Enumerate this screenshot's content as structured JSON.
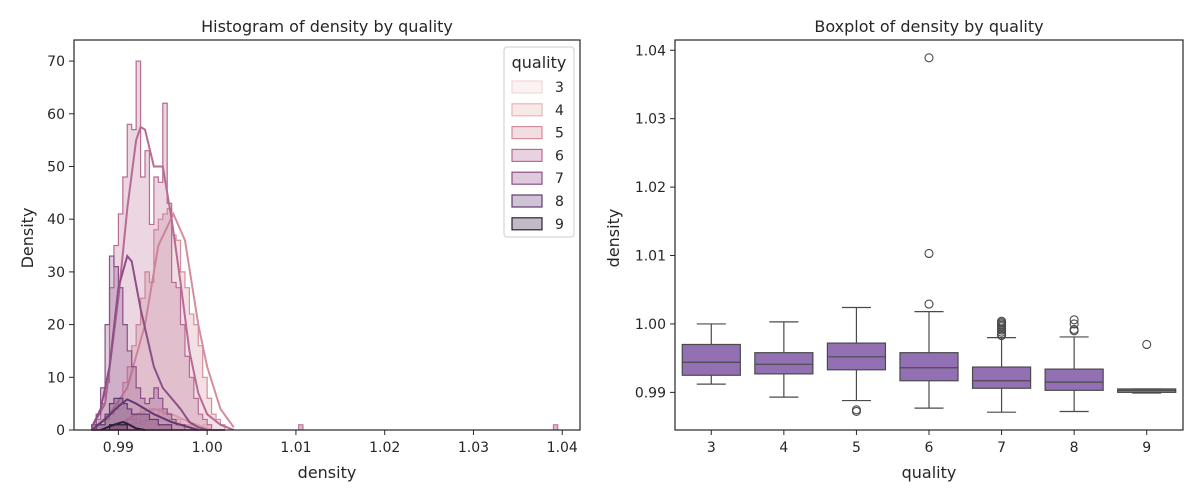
{
  "colors": {
    "q3": "#f3d7d3",
    "q4": "#e8b6b6",
    "q5": "#d48e9d",
    "q6": "#b76b95",
    "q7": "#8d4f88",
    "q8": "#603a70",
    "q9": "#2e1e3b",
    "box_fill": "#9370b3",
    "box_edge": "#4a4a4a"
  },
  "chart_data": [
    {
      "type": "histogram",
      "title": "Histogram of density by quality",
      "xlabel": "density",
      "ylabel": "Density",
      "xlim": [
        0.985,
        1.042
      ],
      "ylim": [
        0,
        74
      ],
      "xticks": [
        0.99,
        1.0,
        1.01,
        1.02,
        1.03,
        1.04
      ],
      "xtick_labels": [
        "0.99",
        "1.00",
        "1.01",
        "1.02",
        "1.03",
        "1.04"
      ],
      "yticks": [
        0,
        10,
        20,
        30,
        40,
        50,
        60,
        70
      ],
      "ytick_labels": [
        "0",
        "10",
        "20",
        "30",
        "40",
        "50",
        "60",
        "70"
      ],
      "legend": {
        "title": "quality",
        "position": "top-right",
        "entries": [
          "3",
          "4",
          "5",
          "6",
          "7",
          "8",
          "9"
        ]
      },
      "element": "step",
      "kde": true,
      "bin_start": 0.987,
      "bin_width": 0.0005,
      "series": [
        {
          "name": "3",
          "counts": [
            0,
            0,
            0,
            0,
            0,
            0,
            0,
            0,
            1,
            1,
            2,
            1,
            2,
            2,
            2,
            1,
            1,
            2,
            1,
            1,
            1,
            1,
            1,
            1,
            0,
            1,
            0,
            0,
            0,
            0
          ],
          "kde": [
            [
              0.9895,
              0
            ],
            [
              0.991,
              1
            ],
            [
              0.994,
              2
            ],
            [
              0.996,
              1.5
            ],
            [
              0.999,
              0.5
            ],
            [
              1.0005,
              0
            ]
          ]
        },
        {
          "name": "4",
          "counts": [
            0,
            0,
            0,
            0,
            0,
            1,
            1,
            1,
            2,
            2,
            3,
            4,
            3,
            4,
            3,
            4,
            3,
            3,
            2,
            2,
            1,
            1,
            1,
            1,
            0,
            0,
            0,
            0,
            0,
            0
          ],
          "kde": [
            [
              0.988,
              0
            ],
            [
              0.99,
              1
            ],
            [
              0.992,
              3
            ],
            [
              0.994,
              4
            ],
            [
              0.996,
              3
            ],
            [
              0.998,
              1.5
            ],
            [
              1.0005,
              0
            ]
          ]
        },
        {
          "name": "5",
          "counts": [
            0,
            1,
            1,
            2,
            3,
            4,
            6,
            9,
            12,
            16,
            20,
            25,
            30,
            28,
            38,
            40,
            41,
            42,
            37,
            36,
            30,
            27,
            22,
            20,
            16,
            10,
            6,
            3,
            2,
            1
          ],
          "kde": [
            [
              0.987,
              0
            ],
            [
              0.989,
              3
            ],
            [
              0.991,
              8
            ],
            [
              0.993,
              20
            ],
            [
              0.9945,
              35
            ],
            [
              0.9962,
              41
            ],
            [
              0.9975,
              36
            ],
            [
              0.999,
              20
            ],
            [
              1.0,
              12
            ],
            [
              1.0015,
              4
            ],
            [
              1.003,
              0.5
            ]
          ]
        },
        {
          "name": "6",
          "counts": [
            1,
            2,
            5,
            9,
            27,
            35,
            41,
            48,
            58,
            57,
            70,
            48,
            53,
            39,
            48,
            47,
            62,
            43,
            28,
            27,
            20,
            14,
            10,
            6,
            3,
            2,
            1,
            0,
            0,
            0
          ],
          "kde": [
            [
              0.987,
              0.5
            ],
            [
              0.9885,
              5
            ],
            [
              0.99,
              25
            ],
            [
              0.991,
              42
            ],
            [
              0.992,
              55
            ],
            [
              0.9925,
              57.5
            ],
            [
              0.993,
              57
            ],
            [
              0.994,
              50
            ],
            [
              0.995,
              50
            ],
            [
              0.996,
              40
            ],
            [
              0.997,
              28
            ],
            [
              0.998,
              15
            ],
            [
              0.999,
              7
            ],
            [
              1.0,
              3
            ],
            [
              1.0015,
              1
            ],
            [
              1.003,
              0
            ]
          ]
        },
        {
          "name": "7",
          "counts": [
            1,
            3,
            8,
            20,
            33,
            31,
            27,
            20,
            15,
            12,
            8,
            6,
            5,
            6,
            8,
            6,
            4,
            3,
            2,
            1,
            1,
            0,
            0,
            0,
            0,
            0,
            0,
            0,
            0,
            0
          ],
          "kde": [
            [
              0.987,
              0.5
            ],
            [
              0.988,
              4
            ],
            [
              0.989,
              12
            ],
            [
              0.99,
              27
            ],
            [
              0.991,
              33
            ],
            [
              0.9915,
              32
            ],
            [
              0.9925,
              23
            ],
            [
              0.994,
              12
            ],
            [
              0.995,
              8
            ],
            [
              0.996,
              6
            ],
            [
              0.997,
              4
            ],
            [
              0.998,
              1.5
            ],
            [
              0.999,
              0.5
            ],
            [
              1.0,
              0
            ]
          ]
        },
        {
          "name": "8",
          "counts": [
            0,
            1,
            1,
            3,
            5,
            6,
            6,
            5,
            4,
            3,
            3,
            3,
            3,
            2,
            2,
            1,
            1,
            1,
            0,
            0,
            0,
            0,
            0,
            0,
            0,
            0,
            0,
            0,
            0,
            0
          ],
          "kde": [
            [
              0.987,
              0
            ],
            [
              0.9885,
              2
            ],
            [
              0.99,
              4.5
            ],
            [
              0.991,
              5.8
            ],
            [
              0.992,
              5
            ],
            [
              0.993,
              4
            ],
            [
              0.994,
              3
            ],
            [
              0.996,
              1.5
            ],
            [
              0.998,
              0.5
            ],
            [
              0.999,
              0
            ]
          ]
        },
        {
          "name": "9",
          "counts": [
            0,
            0,
            0,
            0,
            1,
            1,
            1,
            1,
            0,
            0,
            0,
            0,
            0,
            0,
            0,
            0,
            0,
            0,
            0,
            0,
            0,
            0,
            0,
            0,
            0,
            0,
            0,
            0,
            0,
            0
          ],
          "kde": [
            [
              0.988,
              0
            ],
            [
              0.9895,
              1
            ],
            [
              0.9905,
              1.5
            ],
            [
              0.991,
              1.2
            ],
            [
              0.992,
              0.3
            ],
            [
              0.993,
              0
            ]
          ]
        }
      ],
      "outlier_points": [
        {
          "series": "6",
          "x": 1.0103,
          "count": 1
        },
        {
          "series": "6",
          "x": 1.039,
          "count": 1
        }
      ]
    },
    {
      "type": "box",
      "title": "Boxplot of density by quality",
      "xlabel": "quality",
      "ylabel": "density",
      "ylim": [
        0.9845,
        1.0415
      ],
      "yticks": [
        0.99,
        1.0,
        1.01,
        1.02,
        1.03,
        1.04
      ],
      "ytick_labels": [
        "0.99",
        "1.00",
        "1.01",
        "1.02",
        "1.03",
        "1.04"
      ],
      "categories": [
        "3",
        "4",
        "5",
        "6",
        "7",
        "8",
        "9"
      ],
      "boxes": [
        {
          "category": "3",
          "whisker_low": 0.9912,
          "q1": 0.9925,
          "median": 0.9944,
          "q3": 0.997,
          "whisker_high": 1.0,
          "outliers": []
        },
        {
          "category": "4",
          "whisker_low": 0.9893,
          "q1": 0.9927,
          "median": 0.9941,
          "q3": 0.9958,
          "whisker_high": 1.0003,
          "outliers": []
        },
        {
          "category": "5",
          "whisker_low": 0.9888,
          "q1": 0.9933,
          "median": 0.9952,
          "q3": 0.9972,
          "whisker_high": 1.0024,
          "outliers": [
            0.98722,
            0.98745
          ]
        },
        {
          "category": "6",
          "whisker_low": 0.9877,
          "q1": 0.9917,
          "median": 0.9936,
          "q3": 0.9958,
          "whisker_high": 1.0018,
          "outliers": [
            1.0029,
            1.0103,
            1.0389
          ]
        },
        {
          "category": "7",
          "whisker_low": 0.9871,
          "q1": 0.9906,
          "median": 0.9917,
          "q3": 0.9937,
          "whisker_high": 0.998,
          "outliers": [
            0.9983,
            0.9985,
            0.9988,
            0.9991,
            0.9993,
            0.9996,
            0.9998,
            1.0,
            1.0002,
            1.0004
          ]
        },
        {
          "category": "8",
          "whisker_low": 0.9872,
          "q1": 0.9903,
          "median": 0.9915,
          "q3": 0.9934,
          "whisker_high": 0.9981,
          "outliers": [
            0.999,
            0.9992,
            1.0,
            1.0006
          ]
        },
        {
          "category": "9",
          "whisker_low": 0.9899,
          "q1": 0.99,
          "median": 0.9903,
          "q3": 0.9905,
          "whisker_high": 0.9905,
          "outliers": [
            0.997
          ]
        }
      ]
    }
  ]
}
